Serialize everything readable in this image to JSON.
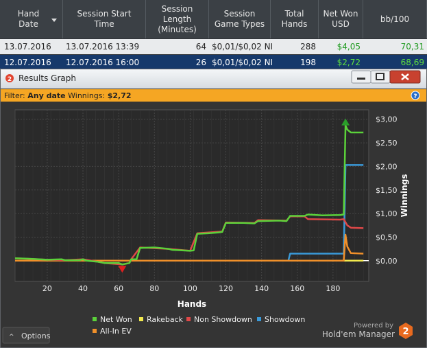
{
  "table": {
    "headers": [
      "Hand Date",
      "Session Start Time",
      "Session Length (Minutes)",
      "Session Game Types",
      "Total Hands",
      "Net Won USD",
      "bb/100"
    ],
    "rows": [
      [
        "13.07.2016",
        "13.07.2016 13:39",
        "64",
        "$0,01/$0,02 NI",
        "288",
        "$4,05",
        "70,31"
      ],
      [
        "12.07.2016",
        "12.07.2016 16:00",
        "26",
        "$0,01/$0,02 NI",
        "198",
        "$2,72",
        "68,69"
      ]
    ]
  },
  "window": {
    "title": "Results Graph",
    "filter": {
      "label": "Filter:",
      "value": "Any date",
      "winnings_label": "Winnings:",
      "winnings": "$2,72"
    },
    "options": "Options",
    "powered_by": "Powered by",
    "brand": "Hold'em Manager"
  },
  "chart_data": {
    "type": "line",
    "x_label": "Hands",
    "y_label": "Winnings",
    "xlim": [
      2,
      200
    ],
    "xticks": [
      20,
      40,
      60,
      80,
      100,
      120,
      140,
      160,
      180
    ],
    "ylim": [
      -0.44,
      3.2
    ],
    "yticks": [
      {
        "value": 0,
        "label": "$0,00"
      },
      {
        "value": 0.5,
        "label": "$0,50"
      },
      {
        "value": 1,
        "label": "$1,00"
      },
      {
        "value": 1.5,
        "label": "$1,50"
      },
      {
        "value": 2,
        "label": "$2,00"
      },
      {
        "value": 2.5,
        "label": "$2,50"
      },
      {
        "value": 3,
        "label": "$3,00"
      }
    ],
    "grid": true,
    "series": [
      {
        "name": "Rakeback",
        "color": "#f2e94e",
        "x": [
          2,
          197
        ],
        "values": [
          0,
          0
        ]
      },
      {
        "name": "Showdown",
        "color": "#3a9ad9",
        "x": [
          2,
          155,
          156,
          186,
          187,
          197
        ],
        "values": [
          0,
          0,
          0.15,
          0.15,
          2.03,
          2.03
        ]
      },
      {
        "name": "All-In EV",
        "color": "#f0902a",
        "x": [
          2,
          186,
          187,
          188,
          190,
          197
        ],
        "values": [
          0,
          0,
          0.55,
          0.3,
          0.16,
          0.15
        ]
      },
      {
        "name": "Non Showdown",
        "color": "#e04848",
        "x": [
          2,
          20,
          30,
          40,
          48,
          52,
          62,
          66,
          67,
          72,
          88,
          100,
          104,
          118,
          120,
          136,
          138,
          154,
          156,
          164,
          166,
          184,
          186,
          188,
          190,
          197
        ],
        "values": [
          0.05,
          0.02,
          0.01,
          0.03,
          -0.02,
          -0.05,
          -0.08,
          -0.05,
          0.03,
          0.28,
          0.25,
          0.21,
          0.58,
          0.62,
          0.81,
          0.8,
          0.86,
          0.85,
          0.94,
          0.94,
          0.88,
          0.87,
          0.88,
          0.75,
          0.7,
          0.69
        ]
      },
      {
        "name": "Net Won",
        "color": "#5bd13a",
        "x": [
          2,
          10,
          20,
          28,
          30,
          38,
          40,
          42,
          48,
          52,
          60,
          62,
          66,
          67,
          70,
          72,
          80,
          88,
          90,
          100,
          102,
          104,
          110,
          116,
          118,
          120,
          130,
          136,
          138,
          150,
          154,
          156,
          164,
          166,
          174,
          184,
          186,
          187,
          188,
          190,
          197
        ],
        "values": [
          0.05,
          0.04,
          0.02,
          0.03,
          0.01,
          0.01,
          0.03,
          0,
          -0.02,
          -0.05,
          -0.05,
          -0.08,
          -0.05,
          0.03,
          0.03,
          0.27,
          0.28,
          0.25,
          0.23,
          0.21,
          0.22,
          0.57,
          0.58,
          0.6,
          0.61,
          0.8,
          0.8,
          0.79,
          0.84,
          0.85,
          0.84,
          0.95,
          0.95,
          0.98,
          0.96,
          0.97,
          0.98,
          2.87,
          2.78,
          2.72,
          2.72
        ]
      }
    ],
    "legend": [
      4,
      0,
      3,
      1,
      2
    ]
  }
}
